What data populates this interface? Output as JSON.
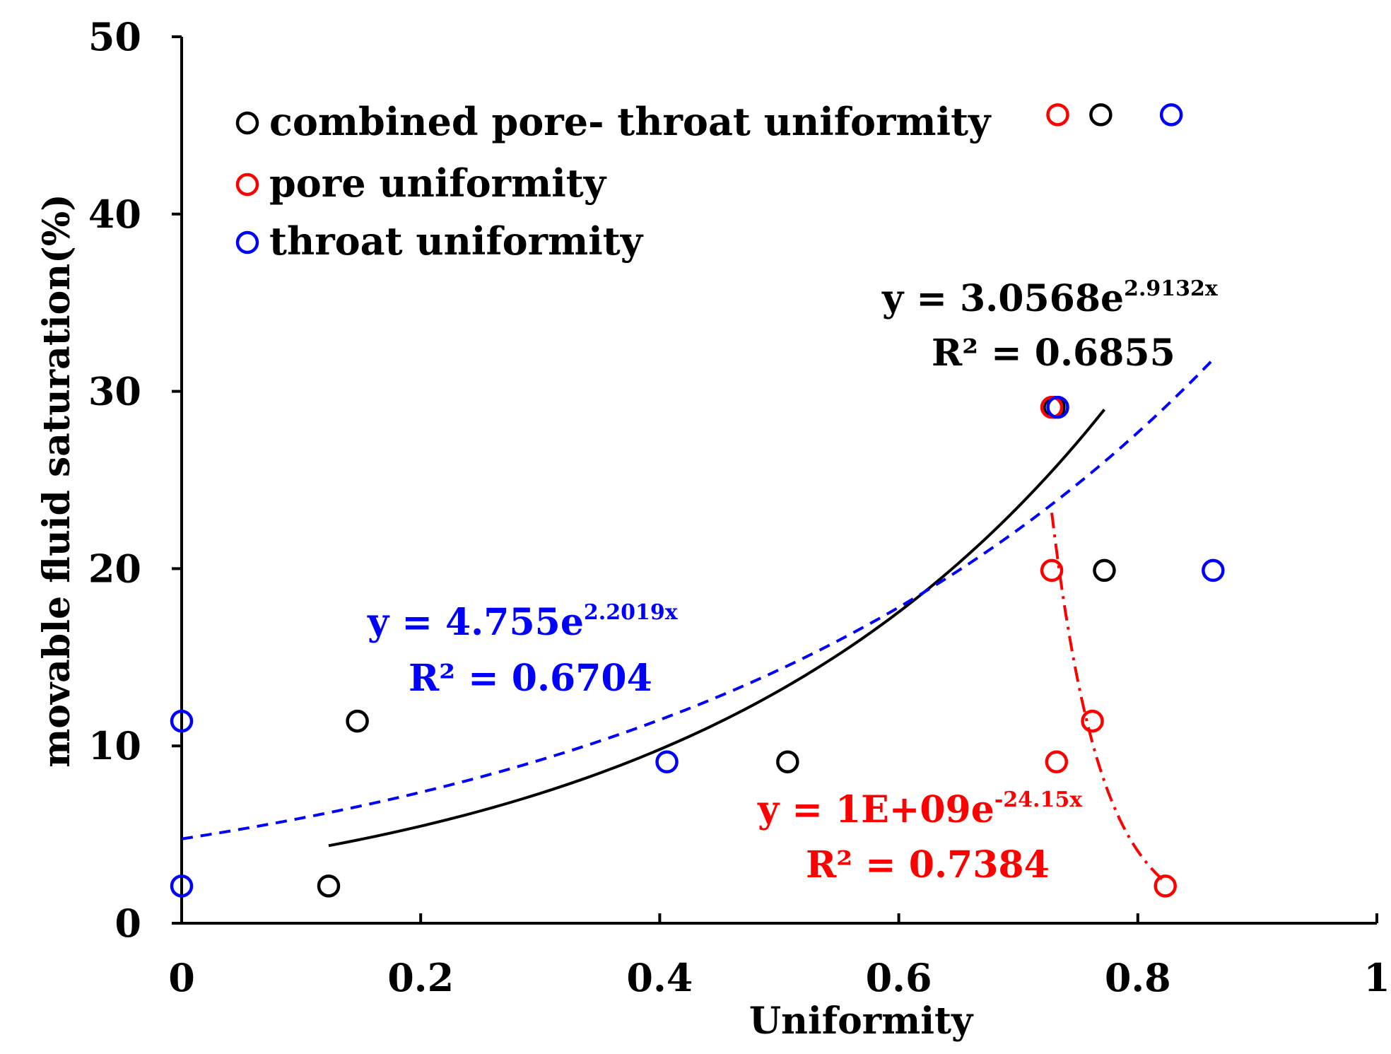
{
  "chart_data": {
    "type": "scatter",
    "title": "",
    "xlabel": "Uniformity",
    "ylabel": "movable fluid saturation(%)",
    "xlim": [
      0,
      1
    ],
    "ylim": [
      0,
      50
    ],
    "xticks": [
      "0",
      "0.2",
      "0.4",
      "0.6",
      "0.8",
      "1"
    ],
    "yticks": [
      "0",
      "10",
      "20",
      "30",
      "40",
      "50"
    ],
    "legend_position": "top-left",
    "colors": {
      "combined": "#000000",
      "pore": "#ff0000",
      "throat": "#0000ff"
    },
    "series": [
      {
        "key": "combined",
        "name": "combined pore- throat uniformity",
        "color": "#000000",
        "points": [
          [
            0.123,
            2.1
          ],
          [
            0.147,
            11.4
          ],
          [
            0.507,
            9.1
          ],
          [
            0.73,
            29.1
          ],
          [
            0.769,
            45.6
          ],
          [
            0.772,
            19.9
          ]
        ]
      },
      {
        "key": "pore",
        "name": "pore uniformity",
        "color": "#ff0000",
        "points": [
          [
            0.733,
            45.6
          ],
          [
            0.728,
            29.1
          ],
          [
            0.728,
            19.9
          ],
          [
            0.762,
            11.4
          ],
          [
            0.732,
            9.1
          ],
          [
            0.823,
            2.1
          ]
        ]
      },
      {
        "key": "throat",
        "name": "throat uniformity",
        "color": "#0000ff",
        "points": [
          [
            0.0,
            11.4
          ],
          [
            0.0,
            2.1
          ],
          [
            0.406,
            9.1
          ],
          [
            0.733,
            29.1
          ],
          [
            0.828,
            45.6
          ],
          [
            0.863,
            19.9
          ]
        ]
      }
    ],
    "trendlines": [
      {
        "key": "combined",
        "color": "#000000",
        "style": "solid",
        "a": 3.0568,
        "b": 2.9132,
        "x_range": [
          0.123,
          0.772
        ],
        "equation_main": "y = 3.0568e",
        "equation_exp": "2.9132x",
        "r2_text": "R² = 0.6855"
      },
      {
        "key": "throat",
        "color": "#0000ff",
        "style": "dashed",
        "a": 4.755,
        "b": 2.2019,
        "x_range": [
          0.0,
          0.863
        ],
        "equation_main": "y = 4.755e",
        "equation_exp": "2.2019x",
        "r2_text": "R² = 0.6704"
      },
      {
        "key": "pore",
        "color": "#ff0000",
        "style": "dashdot",
        "a": 1000000000,
        "b": -24.15,
        "x_range": [
          0.728,
          0.823
        ],
        "equation_main": "y = 1E+09e",
        "equation_exp": "-24.15x",
        "r2_text": "R² = 0.7384"
      }
    ]
  }
}
